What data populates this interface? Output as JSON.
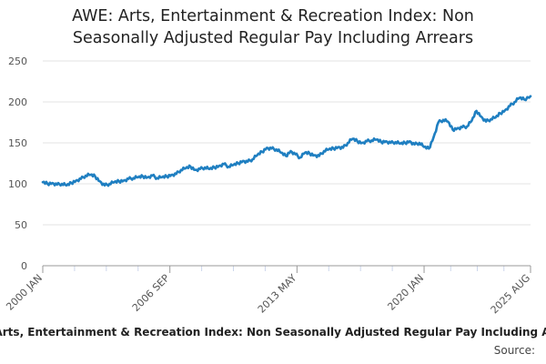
{
  "chart_data": {
    "type": "line",
    "title_line1": "AWE: Arts, Entertainment & Recreation Index: Non",
    "title_line2": "Seasonally Adjusted Regular Pay Including Arrears",
    "series_name": "AWE: Arts, Entertainment & Recreation Index: Non Seasonally Adjusted Regular Pay Including Arrears",
    "source_label": "Source:",
    "xlabel": "",
    "ylabel": "",
    "ylim": [
      0,
      250
    ],
    "y_ticks": [
      0,
      50,
      100,
      150,
      200,
      250
    ],
    "x_tick_labels": [
      "2000 JAN",
      "2006 SEP",
      "2013 MAY",
      "2020 JAN",
      "2025 AUG"
    ],
    "x_tick_years": [
      2000.0,
      2006.667,
      2013.333,
      2020.0,
      2025.583
    ],
    "x_range": [
      2000.0,
      2025.583
    ],
    "line_color": "#1f7fc1",
    "grid": true,
    "series": [
      {
        "name": "Index",
        "x": [
          2000.0,
          2000.25,
          2000.5,
          2000.75,
          2001.0,
          2001.25,
          2001.5,
          2001.75,
          2002.0,
          2002.25,
          2002.5,
          2002.75,
          2003.0,
          2003.25,
          2003.5,
          2003.75,
          2004.0,
          2004.25,
          2004.5,
          2004.75,
          2005.0,
          2005.25,
          2005.5,
          2005.75,
          2006.0,
          2006.25,
          2006.5,
          2006.75,
          2007.0,
          2007.25,
          2007.5,
          2007.75,
          2008.0,
          2008.25,
          2008.5,
          2008.75,
          2009.0,
          2009.25,
          2009.5,
          2009.75,
          2010.0,
          2010.25,
          2010.5,
          2010.75,
          2011.0,
          2011.25,
          2011.5,
          2011.75,
          2012.0,
          2012.25,
          2012.5,
          2012.75,
          2013.0,
          2013.25,
          2013.5,
          2013.75,
          2014.0,
          2014.25,
          2014.5,
          2014.75,
          2015.0,
          2015.25,
          2015.5,
          2015.75,
          2016.0,
          2016.25,
          2016.5,
          2016.75,
          2017.0,
          2017.25,
          2017.5,
          2017.75,
          2018.0,
          2018.25,
          2018.5,
          2018.75,
          2019.0,
          2019.25,
          2019.5,
          2019.75,
          2020.0,
          2020.25,
          2020.5,
          2020.75,
          2021.0,
          2021.25,
          2021.5,
          2021.75,
          2022.0,
          2022.25,
          2022.5,
          2022.75,
          2023.0,
          2023.25,
          2023.5,
          2023.75,
          2024.0,
          2024.25,
          2024.5,
          2024.75,
          2025.0,
          2025.25,
          2025.583
        ],
        "values": [
          102,
          100,
          101,
          99,
          100,
          98,
          101,
          104,
          106,
          110,
          111,
          109,
          103,
          98,
          100,
          102,
          103,
          104,
          106,
          107,
          108,
          109,
          108,
          110,
          107,
          108,
          109,
          111,
          112,
          117,
          119,
          121,
          117,
          118,
          120,
          118,
          120,
          122,
          124,
          121,
          123,
          125,
          128,
          127,
          130,
          135,
          139,
          144,
          143,
          142,
          138,
          134,
          140,
          136,
          132,
          138,
          137,
          135,
          134,
          140,
          142,
          143,
          145,
          144,
          150,
          155,
          152,
          150,
          152,
          153,
          154,
          151,
          152,
          150,
          151,
          149,
          150,
          152,
          148,
          150,
          145,
          143,
          157,
          175,
          178,
          176,
          166,
          168,
          169,
          170,
          177,
          189,
          182,
          176,
          179,
          181,
          186,
          190,
          195,
          200,
          205,
          203,
          207
        ]
      }
    ]
  }
}
